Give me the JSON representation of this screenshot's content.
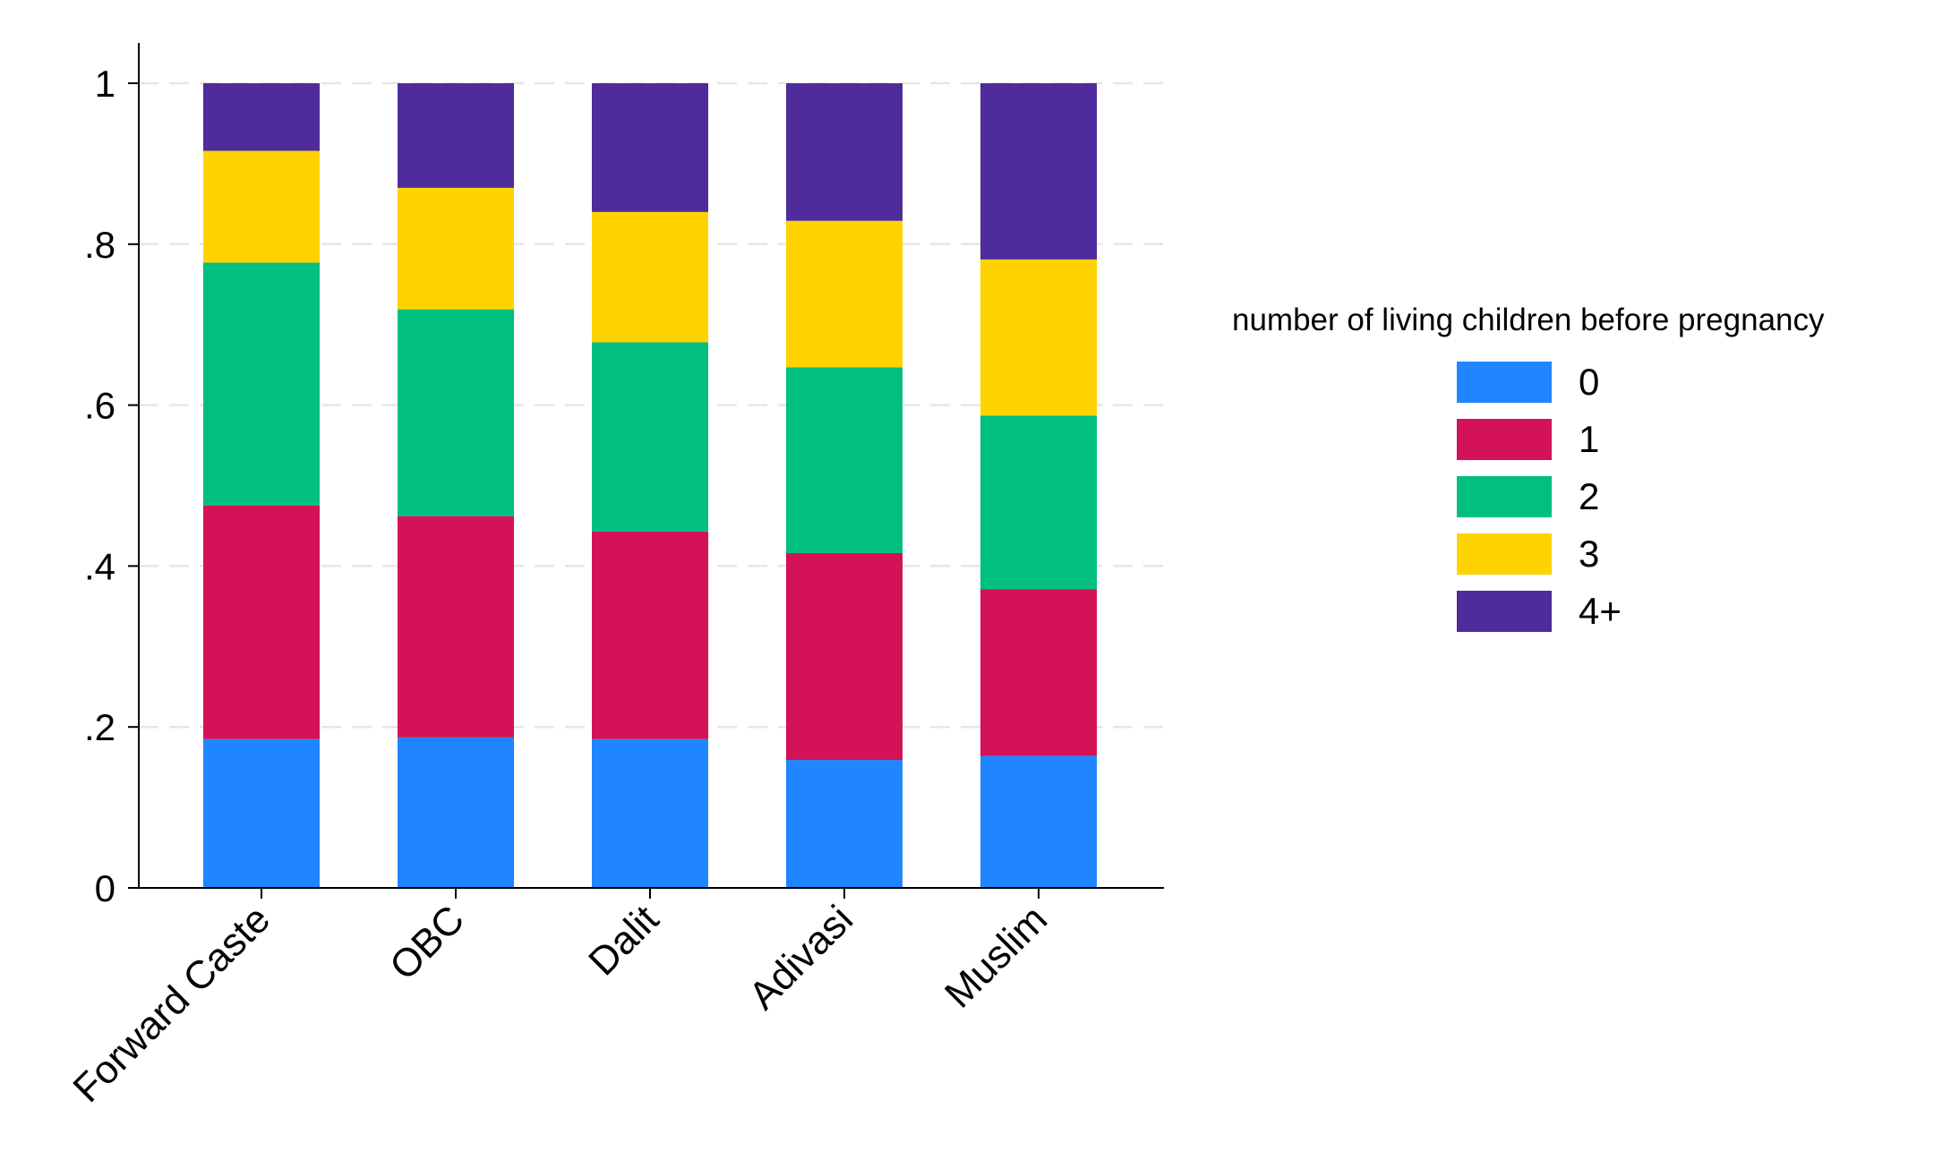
{
  "chart_data": {
    "type": "bar",
    "stacked": true,
    "categories": [
      "Forward Caste",
      "OBC",
      "Dalit",
      "Adivasi",
      "Muslim"
    ],
    "series": [
      {
        "name": "0",
        "color": "#1f86ff",
        "values": [
          0.185,
          0.187,
          0.185,
          0.159,
          0.164
        ]
      },
      {
        "name": "1",
        "color": "#d31257",
        "values": [
          0.29,
          0.275,
          0.258,
          0.257,
          0.207
        ]
      },
      {
        "name": "2",
        "color": "#00bf7f",
        "values": [
          0.302,
          0.257,
          0.235,
          0.231,
          0.216
        ]
      },
      {
        "name": "3",
        "color": "#ffd300",
        "values": [
          0.139,
          0.151,
          0.162,
          0.182,
          0.194
        ]
      },
      {
        "name": "4+",
        "color": "#4f2b9c",
        "values": [
          0.084,
          0.13,
          0.16,
          0.171,
          0.219
        ]
      }
    ],
    "ylim": [
      0,
      1.05
    ],
    "yticks": [
      0,
      0.2,
      0.4,
      0.6,
      0.8,
      1
    ],
    "ytick_labels": [
      "0",
      ".2",
      ".4",
      ".6",
      ".8",
      "1"
    ],
    "grid": true,
    "legend_title": "number of living children before pregnancy",
    "legend_position": "right"
  }
}
